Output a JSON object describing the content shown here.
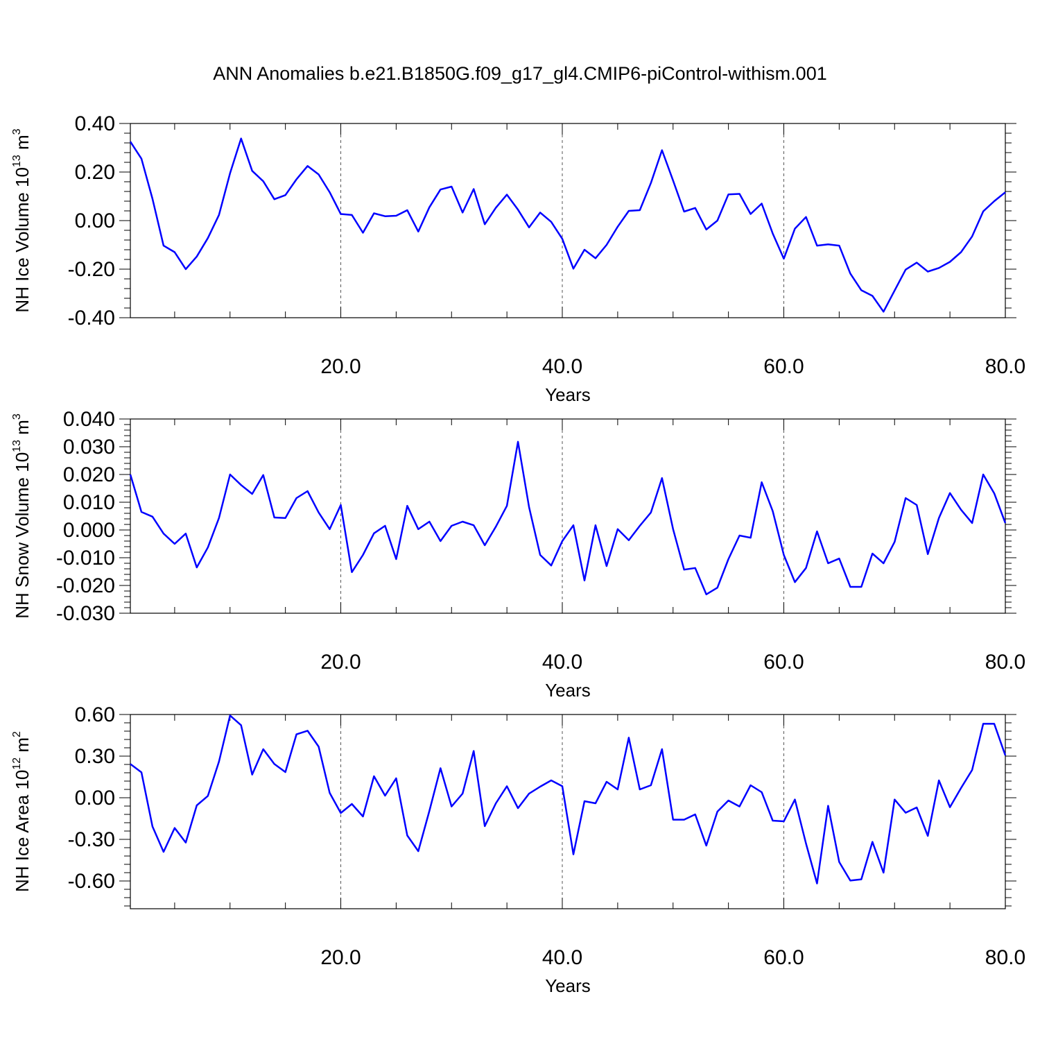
{
  "chart_data": {
    "title": "ANN Anomalies b.e21.B1850G.f09_g17_gl4.CMIP6-piControl-withism.001",
    "line_color": "#0000ff",
    "panels": [
      {
        "type": "line",
        "ylabel_prefix": "NH Ice Volume 10",
        "ylabel_exp": "13",
        "ylabel_unit": " m",
        "ylabel_unit_exp": "3",
        "xlabel": "Years",
        "xlim": [
          1,
          80
        ],
        "ylim": [
          -0.4,
          0.4
        ],
        "yticks": [
          -0.4,
          -0.2,
          0.0,
          0.2,
          0.4
        ],
        "ytick_labels": [
          "-0.40",
          "-0.20",
          "0.00",
          "0.20",
          "0.40"
        ],
        "xticks": [
          20,
          40,
          60,
          80
        ],
        "xtick_labels": [
          "20.0",
          "40.0",
          "60.0",
          "80.0"
        ],
        "grid_x": [
          20,
          40,
          60
        ],
        "values": [
          0.325,
          0.255,
          0.09,
          -0.103,
          -0.13,
          -0.2,
          -0.148,
          -0.072,
          0.023,
          0.195,
          0.338,
          0.205,
          0.162,
          0.088,
          0.105,
          0.17,
          0.225,
          0.19,
          0.117,
          0.027,
          0.023,
          -0.05,
          0.03,
          0.018,
          0.02,
          0.043,
          -0.045,
          0.055,
          0.128,
          0.14,
          0.033,
          0.13,
          -0.015,
          0.053,
          0.107,
          0.045,
          -0.028,
          0.033,
          -0.005,
          -0.075,
          -0.198,
          -0.12,
          -0.155,
          -0.1,
          -0.025,
          0.04,
          0.043,
          0.155,
          0.29,
          0.165,
          0.037,
          0.052,
          -0.037,
          0.0,
          0.108,
          0.11,
          0.027,
          0.07,
          -0.053,
          -0.157,
          -0.033,
          0.015,
          -0.103,
          -0.098,
          -0.103,
          -0.218,
          -0.287,
          -0.31,
          -0.375,
          -0.288,
          -0.202,
          -0.173,
          -0.21,
          -0.195,
          -0.17,
          -0.13,
          -0.065,
          0.038,
          0.08,
          0.117
        ]
      },
      {
        "type": "line",
        "ylabel_prefix": "NH Snow Volume 10",
        "ylabel_exp": "13",
        "ylabel_unit": " m",
        "ylabel_unit_exp": "3",
        "xlabel": "Years",
        "xlim": [
          1,
          80
        ],
        "ylim": [
          -0.03,
          0.04
        ],
        "yticks": [
          -0.03,
          -0.02,
          -0.01,
          0.0,
          0.01,
          0.02,
          0.03,
          0.04
        ],
        "ytick_labels": [
          "-0.030",
          "-0.020",
          "-0.010",
          "0.000",
          "0.010",
          "0.020",
          "0.030",
          "0.040"
        ],
        "xticks": [
          20,
          40,
          60,
          80
        ],
        "xtick_labels": [
          "20.0",
          "40.0",
          "60.0",
          "80.0"
        ],
        "grid_x": [
          20,
          40,
          60
        ],
        "values": [
          0.02,
          0.0065,
          0.0048,
          -0.0013,
          -0.005,
          -0.0013,
          -0.0135,
          -0.0063,
          0.0043,
          0.02,
          0.0162,
          0.013,
          0.0198,
          0.0045,
          0.0043,
          0.0115,
          0.014,
          0.0063,
          0.0003,
          0.009,
          -0.0152,
          -0.009,
          -0.0012,
          0.0015,
          -0.0105,
          0.0087,
          0.0003,
          0.003,
          -0.004,
          0.0015,
          0.003,
          0.0017,
          -0.0055,
          0.0012,
          0.0087,
          0.0318,
          0.0082,
          -0.009,
          -0.0128,
          -0.004,
          0.0017,
          -0.0182,
          0.0017,
          -0.013,
          0.0003,
          -0.0037,
          0.0015,
          0.0063,
          0.0187,
          0.0003,
          -0.0143,
          -0.0137,
          -0.0232,
          -0.0208,
          -0.0105,
          -0.002,
          -0.0028,
          0.0172,
          0.0068,
          -0.009,
          -0.0188,
          -0.0137,
          -0.0005,
          -0.012,
          -0.0103,
          -0.0205,
          -0.0205,
          -0.0085,
          -0.012,
          -0.0043,
          0.0115,
          0.009,
          -0.0087,
          0.0043,
          0.0133,
          0.0073,
          0.0025,
          0.02,
          0.0132,
          0.0025
        ]
      },
      {
        "type": "line",
        "ylabel_prefix": "NH Ice Area 10",
        "ylabel_exp": "12",
        "ylabel_unit": " m",
        "ylabel_unit_exp": "2",
        "xlabel": "Years",
        "xlim": [
          1,
          80
        ],
        "ylim": [
          -0.8,
          0.6
        ],
        "yticks": [
          -0.6,
          -0.3,
          0.0,
          0.3,
          0.6
        ],
        "ytick_labels": [
          "-0.60",
          "-0.30",
          "0.00",
          "0.30",
          "0.60"
        ],
        "xticks": [
          20,
          40,
          60,
          80
        ],
        "xtick_labels": [
          "20.0",
          "40.0",
          "60.0",
          "80.0"
        ],
        "grid_x": [
          20,
          40,
          60
        ],
        "values": [
          0.243,
          0.183,
          -0.207,
          -0.39,
          -0.218,
          -0.323,
          -0.055,
          0.013,
          0.26,
          0.593,
          0.523,
          0.167,
          0.35,
          0.243,
          0.185,
          0.457,
          0.483,
          0.368,
          0.035,
          -0.11,
          -0.045,
          -0.135,
          0.155,
          0.015,
          0.14,
          -0.272,
          -0.385,
          -0.095,
          0.213,
          -0.063,
          0.03,
          0.337,
          -0.205,
          -0.04,
          0.083,
          -0.075,
          0.03,
          0.08,
          0.125,
          0.083,
          -0.408,
          -0.025,
          -0.04,
          0.115,
          0.06,
          0.433,
          0.06,
          0.09,
          0.35,
          -0.158,
          -0.158,
          -0.12,
          -0.345,
          -0.1,
          -0.02,
          -0.063,
          0.09,
          0.04,
          -0.165,
          -0.17,
          -0.013,
          -0.33,
          -0.618,
          -0.058,
          -0.463,
          -0.597,
          -0.588,
          -0.318,
          -0.54,
          -0.013,
          -0.108,
          -0.07,
          -0.275,
          0.125,
          -0.068,
          0.07,
          0.2,
          0.533,
          0.533,
          0.305
        ]
      }
    ]
  }
}
